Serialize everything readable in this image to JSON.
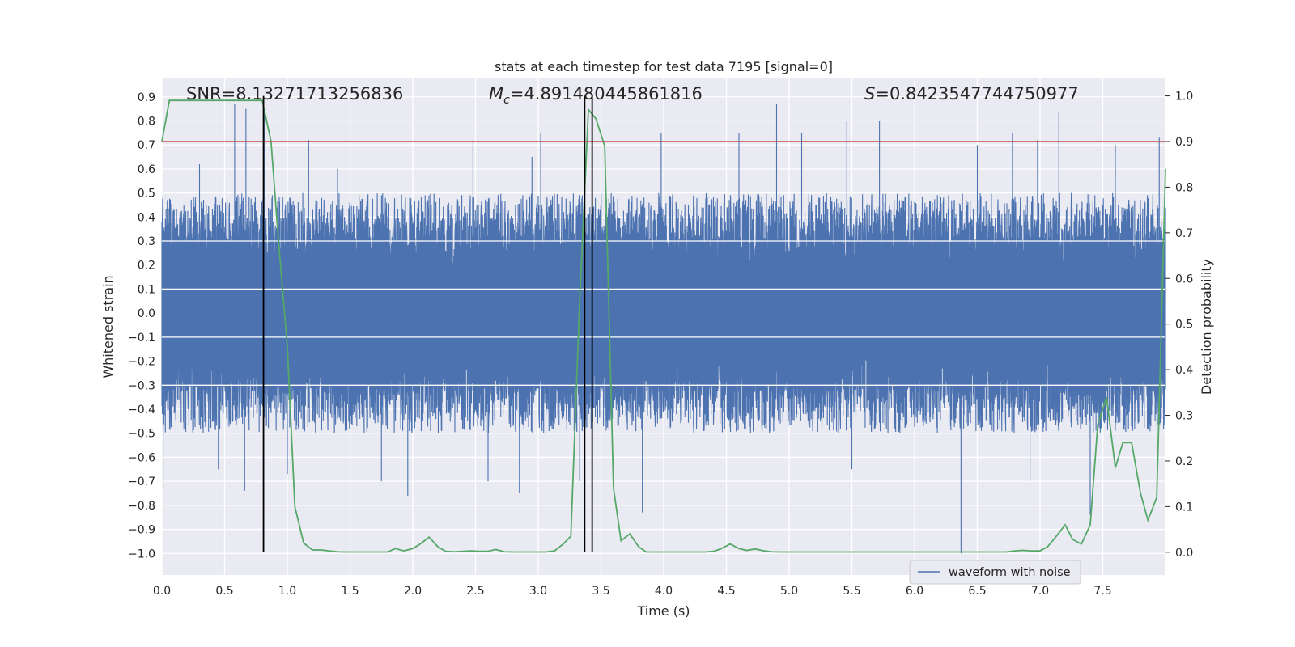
{
  "chart_data": {
    "type": "line",
    "title": "stats at each timestep for test data 7195 [signal=0]",
    "xlabel": "Time (s)",
    "ylabel": "Whitened strain",
    "y2label": "Detection probability",
    "xlim": [
      0.0,
      8.0
    ],
    "ylim": [
      -1.09,
      0.98
    ],
    "y2lim": [
      -0.05,
      1.04
    ],
    "xticks": [
      "0.0",
      "0.5",
      "1.0",
      "1.5",
      "2.0",
      "2.5",
      "3.0",
      "3.5",
      "4.0",
      "4.5",
      "5.0",
      "5.5",
      "6.0",
      "6.5",
      "7.0",
      "7.5"
    ],
    "yticks": [
      "0.9",
      "0.8",
      "0.7",
      "0.6",
      "0.5",
      "0.4",
      "0.3",
      "0.2",
      "0.1",
      "0.0",
      "−0.1",
      "−0.2",
      "−0.3",
      "−0.4",
      "−0.5",
      "−0.6",
      "−0.7",
      "−0.8",
      "−0.9",
      "−1.0"
    ],
    "y2ticks": [
      "1.0",
      "0.9",
      "0.8",
      "0.7",
      "0.6",
      "0.5",
      "0.4",
      "0.3",
      "0.2",
      "0.1",
      "0.0"
    ],
    "grid": true,
    "legend_position": "lower-right",
    "annotations": {
      "snr": "SNR=8.13271713256836",
      "mc": "=4.891480445861816",
      "s": "=0.8423547744750977"
    },
    "threshold": {
      "axis": "y2",
      "value": 0.9,
      "color": "#c44e52"
    },
    "vertical_lines": {
      "x": [
        0.81,
        3.37,
        3.43
      ],
      "color": "#000000"
    },
    "series": [
      {
        "name": "waveform with noise",
        "axis": "y",
        "color": "#4c72b0",
        "envelope_typical": 0.5,
        "peaks": [
          {
            "x": 0.0,
            "y": 0.38
          },
          {
            "x": 0.01,
            "y": -0.73
          },
          {
            "x": 0.3,
            "y": 0.62
          },
          {
            "x": 0.45,
            "y": -0.65
          },
          {
            "x": 0.58,
            "y": 0.87
          },
          {
            "x": 0.67,
            "y": 0.85
          },
          {
            "x": 0.66,
            "y": -0.74
          },
          {
            "x": 0.82,
            "y": 0.83
          },
          {
            "x": 1.0,
            "y": -0.67
          },
          {
            "x": 1.17,
            "y": 0.72
          },
          {
            "x": 1.4,
            "y": 0.6
          },
          {
            "x": 1.75,
            "y": -0.7
          },
          {
            "x": 1.96,
            "y": -0.76
          },
          {
            "x": 2.48,
            "y": 0.72
          },
          {
            "x": 2.6,
            "y": -0.7
          },
          {
            "x": 2.85,
            "y": -0.75
          },
          {
            "x": 2.95,
            "y": 0.65
          },
          {
            "x": 3.02,
            "y": 0.75
          },
          {
            "x": 3.33,
            "y": -0.7
          },
          {
            "x": 3.83,
            "y": -0.83
          },
          {
            "x": 3.98,
            "y": 0.75
          },
          {
            "x": 4.6,
            "y": 0.75
          },
          {
            "x": 4.9,
            "y": 0.87
          },
          {
            "x": 5.1,
            "y": 0.75
          },
          {
            "x": 5.46,
            "y": 0.8
          },
          {
            "x": 5.5,
            "y": -0.65
          },
          {
            "x": 5.72,
            "y": 0.8
          },
          {
            "x": 6.37,
            "y": -1.0
          },
          {
            "x": 6.5,
            "y": 0.7
          },
          {
            "x": 6.78,
            "y": 0.75
          },
          {
            "x": 6.92,
            "y": -0.7
          },
          {
            "x": 6.98,
            "y": 0.72
          },
          {
            "x": 7.15,
            "y": 0.84
          },
          {
            "x": 7.4,
            "y": -0.84
          },
          {
            "x": 7.6,
            "y": 0.7
          },
          {
            "x": 7.95,
            "y": 0.73
          }
        ]
      },
      {
        "name": "Detection probability",
        "axis": "y2",
        "color": "#55a868",
        "x": [
          0.0,
          0.06,
          0.13,
          0.2,
          0.26,
          0.33,
          0.4,
          0.46,
          0.53,
          0.6,
          0.66,
          0.73,
          0.8,
          0.87,
          0.93,
          1.0,
          1.06,
          1.13,
          1.2,
          1.27,
          1.33,
          1.4,
          1.46,
          1.53,
          1.6,
          1.66,
          1.73,
          1.8,
          1.86,
          1.93,
          2.0,
          2.06,
          2.13,
          2.2,
          2.26,
          2.33,
          2.4,
          2.46,
          2.53,
          2.6,
          2.66,
          2.73,
          2.8,
          2.86,
          2.93,
          3.0,
          3.06,
          3.13,
          3.2,
          3.26,
          3.33,
          3.4,
          3.46,
          3.53,
          3.6,
          3.66,
          3.73,
          3.8,
          3.86,
          3.93,
          4.0,
          4.06,
          4.13,
          4.2,
          4.26,
          4.33,
          4.4,
          4.46,
          4.53,
          4.6,
          4.66,
          4.73,
          4.8,
          4.86,
          4.93,
          5.0,
          5.06,
          5.13,
          5.2,
          5.26,
          5.33,
          5.4,
          5.46,
          5.53,
          5.6,
          5.66,
          5.73,
          5.8,
          5.86,
          5.93,
          6.0,
          6.06,
          6.13,
          6.2,
          6.26,
          6.33,
          6.4,
          6.46,
          6.53,
          6.6,
          6.66,
          6.73,
          6.8,
          6.86,
          6.93,
          7.0,
          7.06,
          7.13,
          7.2,
          7.26,
          7.33,
          7.4,
          7.46,
          7.53,
          7.6,
          7.66,
          7.73,
          7.8,
          7.86,
          7.93,
          8.0
        ],
        "y": [
          0.9,
          0.99,
          0.99,
          0.99,
          0.99,
          0.99,
          0.99,
          0.99,
          0.99,
          0.99,
          0.99,
          0.99,
          0.99,
          0.9,
          0.68,
          0.45,
          0.1,
          0.02,
          0.005,
          0.005,
          0.003,
          0.001,
          0.0005,
          0.0005,
          0.0005,
          0.0005,
          0.0005,
          0.0005,
          0.008,
          0.003,
          0.008,
          0.018,
          0.033,
          0.012,
          0.002,
          0.001,
          0.002,
          0.003,
          0.002,
          0.002,
          0.006,
          0.001,
          0.0005,
          0.0005,
          0.0005,
          0.0005,
          0.0005,
          0.003,
          0.018,
          0.035,
          0.55,
          0.97,
          0.95,
          0.89,
          0.14,
          0.025,
          0.04,
          0.012,
          0.0005,
          0.0005,
          0.0005,
          0.0005,
          0.0005,
          0.0005,
          0.0005,
          0.0005,
          0.002,
          0.008,
          0.018,
          0.008,
          0.004,
          0.007,
          0.003,
          0.001,
          0.0005,
          0.0005,
          0.0005,
          0.0005,
          0.0005,
          0.0005,
          0.0005,
          0.0005,
          0.0005,
          0.0005,
          0.0005,
          0.0005,
          0.0005,
          0.0005,
          0.0005,
          0.0005,
          0.0005,
          0.0005,
          0.0005,
          0.0005,
          0.0005,
          0.0005,
          0.0005,
          0.0005,
          0.0005,
          0.0005,
          0.0005,
          0.0005,
          0.003,
          0.004,
          0.003,
          0.003,
          0.012,
          0.035,
          0.06,
          0.028,
          0.018,
          0.06,
          0.28,
          0.34,
          0.185,
          0.24,
          0.24,
          0.13,
          0.07,
          0.12,
          0.84
        ]
      }
    ]
  }
}
